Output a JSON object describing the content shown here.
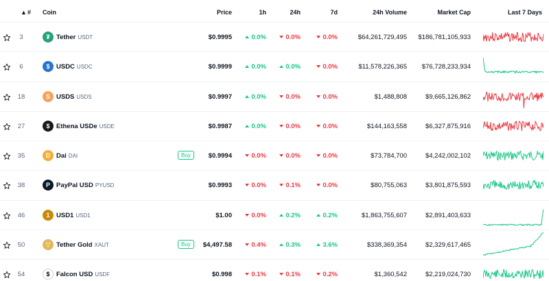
{
  "headers": {
    "rank": "#",
    "coin": "Coin",
    "price": "Price",
    "h1": "1h",
    "h24": "24h",
    "d7": "7d",
    "volume": "24h Volume",
    "mcap": "Market Cap",
    "last7": "Last 7 Days"
  },
  "icons": {
    "star": "star-icon",
    "sort": "sort-asc-icon"
  },
  "colors": {
    "up": "#16c784",
    "down": "#ea3943"
  },
  "rows": [
    {
      "rank": "3",
      "name": "Tether",
      "symbol": "USDT",
      "logo_color": "#26a17b",
      "logo_glyph": "₮",
      "buy": "",
      "price": "$0.9995",
      "h1": "0.0%",
      "h1_dir": "up",
      "h24": "0.0%",
      "h24_dir": "down",
      "d7": "0.0%",
      "d7_dir": "down",
      "volume": "$64,261,729,495",
      "mcap": "$186,781,105,933",
      "trend": "down"
    },
    {
      "rank": "6",
      "name": "USDC",
      "symbol": "USDC",
      "logo_color": "#2775ca",
      "logo_glyph": "$",
      "buy": "",
      "price": "$0.9999",
      "h1": "0.0%",
      "h1_dir": "up",
      "h24": "0.0%",
      "h24_dir": "up",
      "d7": "0.0%",
      "d7_dir": "down",
      "volume": "$11,578,226,365",
      "mcap": "$76,728,233,934",
      "trend": "up"
    },
    {
      "rank": "18",
      "name": "USDS",
      "symbol": "USDS",
      "logo_color": "#f5a25d",
      "logo_glyph": "S",
      "buy": "",
      "price": "$0.9997",
      "h1": "0.0%",
      "h1_dir": "up",
      "h24": "0.0%",
      "h24_dir": "down",
      "d7": "0.0%",
      "d7_dir": "down",
      "volume": "$1,488,808",
      "mcap": "$9,665,126,862",
      "trend": "down"
    },
    {
      "rank": "27",
      "name": "Ethena USDe",
      "symbol": "USDE",
      "logo_color": "#1a1a1a",
      "logo_glyph": "$",
      "buy": "",
      "price": "$0.9987",
      "h1": "0.0%",
      "h1_dir": "up",
      "h24": "0.0%",
      "h24_dir": "down",
      "d7": "0.0%",
      "d7_dir": "down",
      "volume": "$144,163,558",
      "mcap": "$6,327,875,916",
      "trend": "down"
    },
    {
      "rank": "35",
      "name": "Dai",
      "symbol": "DAI",
      "logo_color": "#f5ac37",
      "logo_glyph": "D",
      "buy": "Buy",
      "price": "$0.9994",
      "h1": "0.0%",
      "h1_dir": "down",
      "h24": "0.0%",
      "h24_dir": "down",
      "d7": "0.0%",
      "d7_dir": "down",
      "volume": "$73,784,700",
      "mcap": "$4,242,002,102",
      "trend": "up"
    },
    {
      "rank": "38",
      "name": "PayPal USD",
      "symbol": "PYUSD",
      "logo_color": "#0b1a2a",
      "logo_glyph": "P",
      "buy": "",
      "price": "$0.9993",
      "h1": "0.0%",
      "h1_dir": "down",
      "h24": "0.1%",
      "h24_dir": "down",
      "d7": "0.0%",
      "d7_dir": "down",
      "volume": "$80,755,063",
      "mcap": "$3,801,875,593",
      "trend": "up"
    },
    {
      "rank": "46",
      "name": "USD1",
      "symbol": "USD1",
      "logo_color": "#c8890c",
      "logo_glyph": "1",
      "buy": "",
      "price": "$1.00",
      "h1": "0.0%",
      "h1_dir": "down",
      "h24": "0.2%",
      "h24_dir": "up",
      "d7": "0.2%",
      "d7_dir": "up",
      "volume": "$1,863,755,607",
      "mcap": "$2,891,403,633",
      "trend": "up"
    },
    {
      "rank": "50",
      "name": "Tether Gold",
      "symbol": "XAUT",
      "logo_color": "#e3b85c",
      "logo_glyph": "▽",
      "buy": "Buy",
      "price": "$4,497.58",
      "h1": "0.4%",
      "h1_dir": "down",
      "h24": "0.3%",
      "h24_dir": "up",
      "d7": "3.6%",
      "d7_dir": "up",
      "volume": "$338,369,354",
      "mcap": "$2,329,617,465",
      "trend": "up"
    },
    {
      "rank": "54",
      "name": "Falcon USD",
      "symbol": "USDF",
      "logo_color": "#ffffff",
      "logo_glyph": "$",
      "buy": "",
      "price": "$0.998",
      "h1": "0.1%",
      "h1_dir": "down",
      "h24": "0.1%",
      "h24_dir": "down",
      "d7": "0.2%",
      "d7_dir": "down",
      "volume": "$1,360,542",
      "mcap": "$2,219,024,730",
      "trend": "up"
    }
  ]
}
